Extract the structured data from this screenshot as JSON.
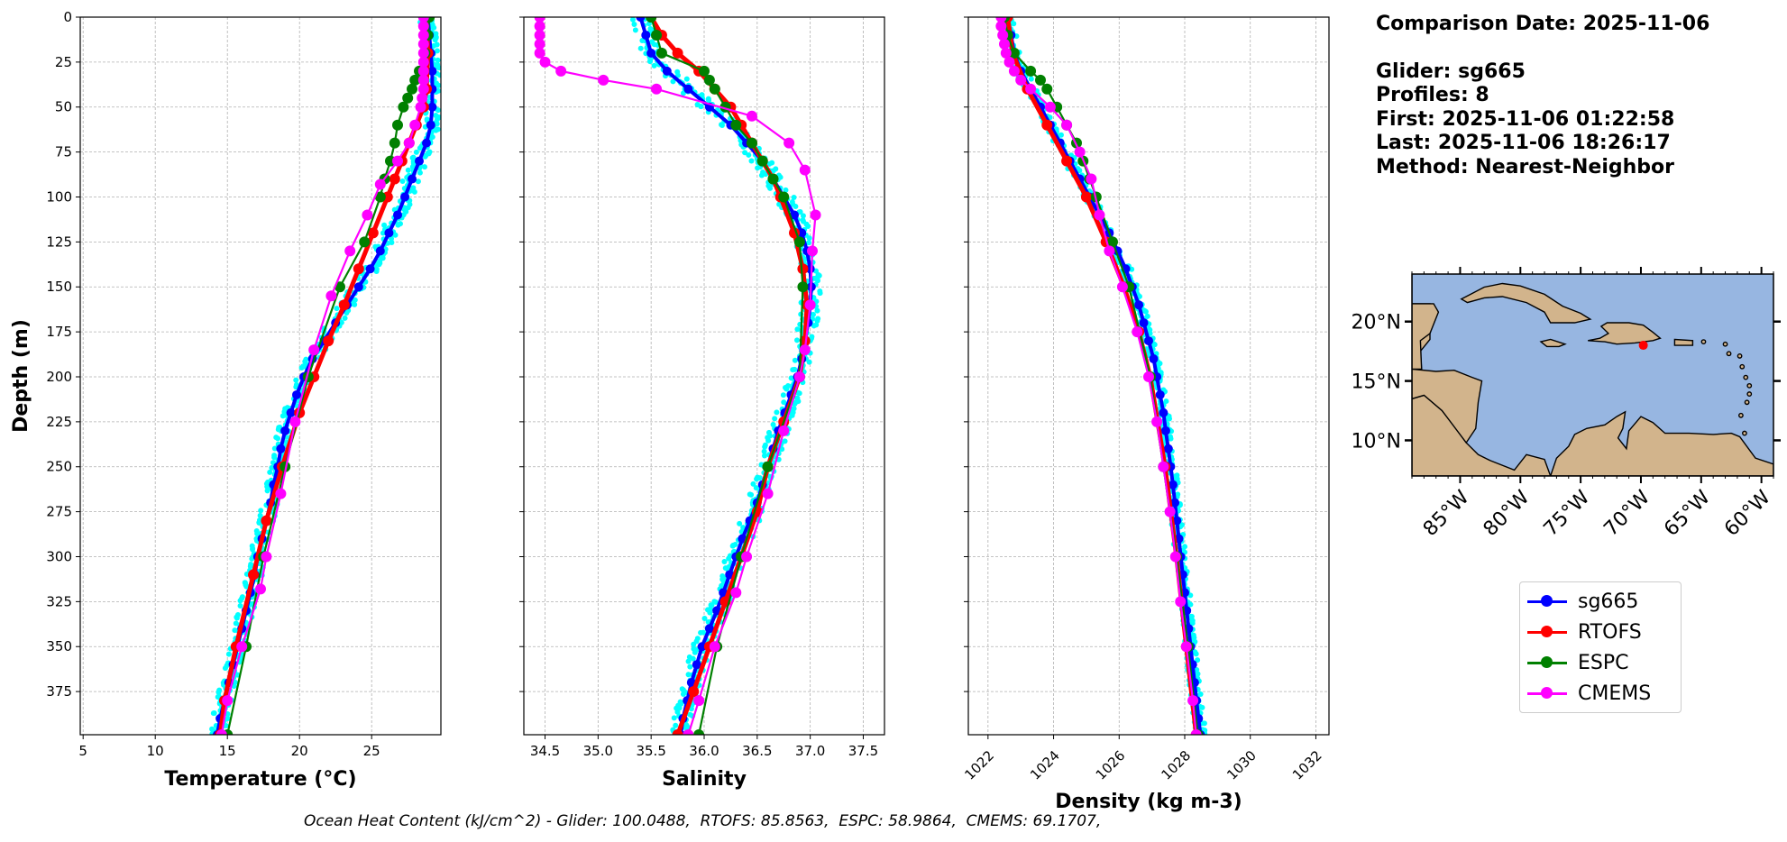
{
  "info": {
    "comparison": "Comparison Date: 2025-11-06",
    "glider": "Glider: sg665",
    "profiles": "Profiles: 8",
    "first": "First: 2025-11-06 01:22:58",
    "last": "Last: 2025-11-06 18:26:17",
    "method": "Method: Nearest-Neighbor"
  },
  "footer": "Ocean Heat Content (kJ/cm^2) - Glider: 100.0488,  RTOFS: 85.8563,  ESPC: 58.9864,  CMEMS: 69.1707,",
  "legend": [
    {
      "name": "sg665",
      "color": "#0000ff"
    },
    {
      "name": "RTOFS",
      "color": "#ff0000"
    },
    {
      "name": "ESPC",
      "color": "#008000"
    },
    {
      "name": "CMEMS",
      "color": "#ff00ff"
    }
  ],
  "map": {
    "lat_labels": [
      "20°N",
      "15°N",
      "10°N"
    ],
    "lat_values": [
      20,
      15,
      10
    ],
    "lon_labels": [
      "85°W",
      "80°W",
      "75°W",
      "70°W",
      "65°W",
      "60°W"
    ],
    "lon_values": [
      -85,
      -80,
      -75,
      -70,
      -65,
      -60
    ],
    "lat_range": [
      7,
      24
    ],
    "lon_range": [
      -89,
      -59
    ],
    "ocean_color": "#97b6e1",
    "land_color": "#d2b48c",
    "glider_location": {
      "lon": -69.8,
      "lat": 18.0,
      "color": "#ff0000"
    }
  },
  "chart_data": [
    {
      "type": "line",
      "xlabel": "Temperature (°C)",
      "ylabel": "Depth (m)",
      "xlim": [
        4.8,
        29.8
      ],
      "ylim": [
        399,
        0
      ],
      "xticks": [
        5,
        10,
        15,
        20,
        25
      ],
      "yticks": [
        0,
        25,
        50,
        75,
        100,
        125,
        150,
        175,
        200,
        225,
        250,
        275,
        300,
        325,
        350,
        375
      ],
      "grid": true,
      "series": [
        {
          "name": "sg665",
          "color": "#0000ff",
          "depth": [
            0,
            10,
            20,
            30,
            40,
            50,
            60,
            70,
            80,
            90,
            100,
            110,
            120,
            130,
            140,
            150,
            160,
            170,
            180,
            190,
            200,
            210,
            220,
            230,
            240,
            250,
            260,
            270,
            280,
            290,
            300,
            310,
            320,
            330,
            340,
            350,
            360,
            370,
            380,
            390,
            399
          ],
          "values": [
            28.9,
            29.0,
            29.1,
            29.2,
            29.2,
            29.2,
            29.1,
            28.8,
            28.3,
            27.8,
            27.3,
            26.8,
            26.2,
            25.6,
            24.9,
            24.1,
            23.3,
            22.5,
            21.7,
            20.9,
            20.3,
            19.8,
            19.4,
            19.0,
            18.7,
            18.5,
            18.2,
            18.0,
            17.7,
            17.4,
            17.1,
            16.9,
            16.6,
            16.3,
            16.0,
            15.7,
            15.4,
            15.1,
            14.8,
            14.5,
            14.3
          ]
        },
        {
          "name": "RTOFS",
          "color": "#ff0000",
          "depth": [
            0,
            20,
            40,
            50,
            60,
            70,
            80,
            90,
            100,
            120,
            140,
            160,
            180,
            200,
            220,
            250,
            280,
            310,
            350,
            380,
            399
          ],
          "values": [
            28.8,
            28.9,
            28.8,
            28.6,
            28.1,
            27.6,
            27.1,
            26.6,
            26.1,
            25.1,
            24.1,
            23.1,
            22.0,
            21.0,
            20.0,
            18.8,
            17.7,
            16.8,
            15.6,
            14.8,
            14.5
          ]
        },
        {
          "name": "ESPC",
          "color": "#008000",
          "depth": [
            0,
            10,
            20,
            30,
            35,
            40,
            45,
            50,
            60,
            70,
            80,
            90,
            100,
            125,
            150,
            200,
            250,
            300,
            350,
            399
          ],
          "values": [
            29.0,
            28.9,
            28.7,
            28.3,
            28.0,
            27.8,
            27.5,
            27.2,
            26.8,
            26.6,
            26.3,
            25.9,
            25.6,
            24.5,
            22.8,
            20.6,
            19.0,
            17.5,
            16.3,
            15.0
          ]
        },
        {
          "name": "CMEMS",
          "color": "#ff00ff",
          "depth": [
            0,
            5,
            10,
            15,
            20,
            25,
            30,
            35,
            40,
            45,
            50,
            60,
            70,
            80,
            93,
            110,
            130,
            155,
            185,
            225,
            265,
            300,
            318,
            350,
            380,
            399
          ],
          "values": [
            28.6,
            28.6,
            28.6,
            28.6,
            28.6,
            28.6,
            28.6,
            28.6,
            28.6,
            28.5,
            28.4,
            28.0,
            27.6,
            26.8,
            25.6,
            24.7,
            23.5,
            22.2,
            21.0,
            19.7,
            18.7,
            17.7,
            17.3,
            16.0,
            15.0,
            14.6
          ]
        }
      ]
    },
    {
      "type": "line",
      "xlabel": "Salinity",
      "xlim": [
        34.3,
        37.7
      ],
      "ylim": [
        399,
        0
      ],
      "xticks": [
        34.5,
        35.0,
        35.5,
        36.0,
        36.5,
        37.0,
        37.5
      ],
      "grid": true,
      "series": [
        {
          "name": "sg665",
          "color": "#0000ff",
          "depth": [
            0,
            10,
            20,
            30,
            40,
            50,
            60,
            70,
            80,
            90,
            100,
            110,
            120,
            130,
            140,
            150,
            160,
            170,
            180,
            190,
            200,
            210,
            220,
            230,
            240,
            250,
            260,
            270,
            280,
            290,
            300,
            310,
            320,
            330,
            340,
            350,
            360,
            370,
            380,
            390,
            399
          ],
          "values": [
            35.4,
            35.45,
            35.5,
            35.65,
            35.85,
            36.05,
            36.25,
            36.4,
            36.55,
            36.65,
            36.75,
            36.85,
            36.92,
            36.97,
            37.0,
            37.01,
            37.0,
            36.98,
            36.95,
            36.92,
            36.88,
            36.82,
            36.76,
            36.7,
            36.65,
            36.6,
            36.55,
            36.5,
            36.43,
            36.36,
            36.3,
            36.24,
            36.18,
            36.12,
            36.05,
            35.98,
            35.93,
            35.88,
            35.84,
            35.8,
            35.78
          ]
        },
        {
          "name": "RTOFS",
          "color": "#ff0000",
          "depth": [
            0,
            10,
            20,
            30,
            40,
            50,
            60,
            70,
            80,
            90,
            100,
            120,
            140,
            160,
            180,
            200,
            225,
            250,
            275,
            300,
            325,
            350,
            375,
            399
          ],
          "values": [
            35.5,
            35.6,
            35.75,
            35.95,
            36.1,
            36.25,
            36.35,
            36.45,
            36.55,
            36.65,
            36.72,
            36.85,
            36.93,
            36.97,
            36.95,
            36.9,
            36.75,
            36.6,
            36.5,
            36.35,
            36.2,
            36.05,
            35.9,
            35.75
          ]
        },
        {
          "name": "ESPC",
          "color": "#008000",
          "depth": [
            0,
            10,
            20,
            30,
            35,
            40,
            50,
            60,
            70,
            80,
            90,
            100,
            125,
            150,
            200,
            250,
            300,
            350,
            399
          ],
          "values": [
            35.5,
            35.55,
            35.6,
            36.0,
            36.05,
            36.1,
            36.2,
            36.3,
            36.45,
            36.55,
            36.65,
            36.75,
            36.9,
            36.93,
            36.9,
            36.6,
            36.35,
            36.12,
            35.95
          ]
        },
        {
          "name": "CMEMS",
          "color": "#ff00ff",
          "depth": [
            0,
            5,
            10,
            15,
            20,
            25,
            30,
            35,
            40,
            55,
            70,
            85,
            110,
            130,
            160,
            185,
            200,
            230,
            265,
            300,
            320,
            350,
            380,
            399
          ],
          "values": [
            34.45,
            34.45,
            34.45,
            34.45,
            34.45,
            34.5,
            34.65,
            35.05,
            35.55,
            36.45,
            36.8,
            36.95,
            37.05,
            37.02,
            37.0,
            36.95,
            36.9,
            36.75,
            36.6,
            36.4,
            36.3,
            36.1,
            35.95,
            35.85
          ]
        }
      ]
    },
    {
      "type": "line",
      "xlabel": "Density (kg m-3)",
      "xlim": [
        1021.4,
        1032.4
      ],
      "ylim": [
        399,
        0
      ],
      "xticks": [
        1022,
        1024,
        1026,
        1028,
        1030,
        1032
      ],
      "grid": true,
      "series": [
        {
          "name": "sg665",
          "color": "#0000ff",
          "depth": [
            0,
            10,
            20,
            30,
            40,
            50,
            60,
            70,
            80,
            90,
            100,
            110,
            120,
            130,
            140,
            150,
            160,
            170,
            180,
            190,
            200,
            210,
            220,
            230,
            240,
            250,
            260,
            270,
            280,
            290,
            300,
            310,
            320,
            330,
            340,
            350,
            360,
            370,
            380,
            390,
            399
          ],
          "values": [
            1022.6,
            1022.7,
            1022.8,
            1023.0,
            1023.3,
            1023.6,
            1023.9,
            1024.2,
            1024.5,
            1024.8,
            1025.1,
            1025.4,
            1025.7,
            1025.95,
            1026.2,
            1026.4,
            1026.6,
            1026.75,
            1026.9,
            1027.05,
            1027.15,
            1027.25,
            1027.35,
            1027.42,
            1027.5,
            1027.57,
            1027.64,
            1027.7,
            1027.76,
            1027.82,
            1027.88,
            1027.94,
            1028.0,
            1028.06,
            1028.12,
            1028.18,
            1028.24,
            1028.3,
            1028.36,
            1028.42,
            1028.48
          ]
        },
        {
          "name": "RTOFS",
          "color": "#ff0000",
          "depth": [
            0,
            20,
            40,
            60,
            80,
            100,
            125,
            150,
            175,
            200,
            250,
            300,
            350,
            399
          ],
          "values": [
            1022.6,
            1022.75,
            1023.2,
            1023.8,
            1024.4,
            1025.0,
            1025.6,
            1026.15,
            1026.6,
            1026.95,
            1027.4,
            1027.75,
            1028.05,
            1028.35
          ]
        },
        {
          "name": "ESPC",
          "color": "#008000",
          "depth": [
            0,
            10,
            20,
            30,
            35,
            40,
            50,
            60,
            70,
            80,
            90,
            100,
            125,
            150,
            200,
            250,
            300,
            350,
            399
          ],
          "values": [
            1022.5,
            1022.6,
            1022.8,
            1023.3,
            1023.6,
            1023.8,
            1024.1,
            1024.4,
            1024.7,
            1024.9,
            1025.1,
            1025.3,
            1025.8,
            1026.3,
            1026.95,
            1027.35,
            1027.75,
            1028.1,
            1028.4
          ]
        },
        {
          "name": "CMEMS",
          "color": "#ff00ff",
          "depth": [
            0,
            5,
            10,
            15,
            20,
            25,
            30,
            35,
            40,
            50,
            60,
            75,
            90,
            110,
            130,
            150,
            175,
            200,
            225,
            250,
            275,
            300,
            325,
            350,
            380,
            399
          ],
          "values": [
            1022.4,
            1022.4,
            1022.45,
            1022.5,
            1022.55,
            1022.65,
            1022.8,
            1023.0,
            1023.3,
            1023.9,
            1024.4,
            1024.8,
            1025.15,
            1025.4,
            1025.7,
            1026.1,
            1026.55,
            1026.9,
            1027.15,
            1027.35,
            1027.55,
            1027.72,
            1027.87,
            1028.05,
            1028.25,
            1028.35
          ]
        }
      ]
    }
  ]
}
